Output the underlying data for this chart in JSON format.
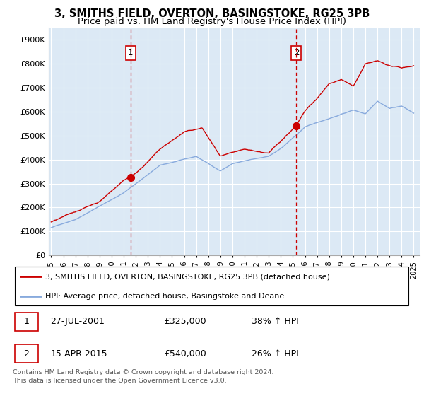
{
  "title": "3, SMITHS FIELD, OVERTON, BASINGSTOKE, RG25 3PB",
  "subtitle": "Price paid vs. HM Land Registry's House Price Index (HPI)",
  "title_fontsize": 10.5,
  "subtitle_fontsize": 9.5,
  "ylabel_ticks": [
    "£0",
    "£100K",
    "£200K",
    "£300K",
    "£400K",
    "£500K",
    "£600K",
    "£700K",
    "£800K",
    "£900K"
  ],
  "ytick_values": [
    0,
    100000,
    200000,
    300000,
    400000,
    500000,
    600000,
    700000,
    800000,
    900000
  ],
  "ylim": [
    0,
    950000
  ],
  "xlim_start": 1994.8,
  "xlim_end": 2025.5,
  "background_color": "#dce9f5",
  "grid_color": "#ffffff",
  "line1_color": "#cc0000",
  "line2_color": "#88aadd",
  "vline_color": "#cc0000",
  "sale1_x": 2001.57,
  "sale1_y": 325000,
  "sale2_x": 2015.29,
  "sale2_y": 540000,
  "legend_line1": "3, SMITHS FIELD, OVERTON, BASINGSTOKE, RG25 3PB (detached house)",
  "legend_line2": "HPI: Average price, detached house, Basingstoke and Deane",
  "table_rows": [
    {
      "num": "1",
      "date": "27-JUL-2001",
      "price": "£325,000",
      "hpi": "38% ↑ HPI"
    },
    {
      "num": "2",
      "date": "15-APR-2015",
      "price": "£540,000",
      "hpi": "26% ↑ HPI"
    }
  ],
  "footer": "Contains HM Land Registry data © Crown copyright and database right 2024.\nThis data is licensed under the Open Government Licence v3.0."
}
